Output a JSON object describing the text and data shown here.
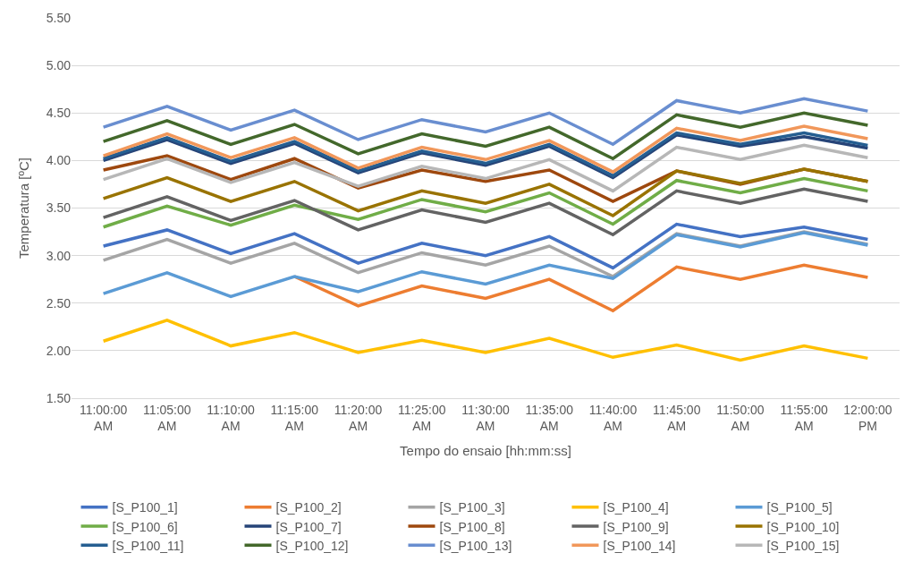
{
  "chart_data": {
    "type": "line",
    "xlabel": "Tempo do ensaio [hh:mm:ss]",
    "ylabel": "Temperatura [ºC]",
    "categories": [
      "11:00:00 AM",
      "11:05:00 AM",
      "11:10:00 AM",
      "11:15:00 AM",
      "11:20:00 AM",
      "11:25:00 AM",
      "11:30:00 AM",
      "11:35:00 AM",
      "11:40:00 AM",
      "11:45:00 AM",
      "11:50:00 AM",
      "11:55:00 AM",
      "12:00:00 PM"
    ],
    "ylim": [
      1.5,
      5.5
    ],
    "yticks": [
      {
        "value": 1.5,
        "label": "1.50"
      },
      {
        "value": 2.0,
        "label": "2.00"
      },
      {
        "value": 2.5,
        "label": "2.50"
      },
      {
        "value": 3.0,
        "label": "3.00"
      },
      {
        "value": 3.5,
        "label": "3.50"
      },
      {
        "value": 4.0,
        "label": "4.00"
      },
      {
        "value": 4.5,
        "label": "4.50"
      },
      {
        "value": 5.0,
        "label": "5.00"
      },
      {
        "value": 5.5,
        "label": "5.50"
      }
    ],
    "grid": "y",
    "legend": "bottom",
    "marker": "none",
    "line_style": "solid",
    "series": [
      {
        "name": "[S_P100_1]",
        "color": "#4472c4",
        "values": [
          3.1,
          3.27,
          3.02,
          3.23,
          2.92,
          3.13,
          3.0,
          3.2,
          2.87,
          3.33,
          3.2,
          3.3,
          3.17
        ]
      },
      {
        "name": "[S_P100_2]",
        "color": "#ed7d31",
        "values": [
          null,
          null,
          null,
          2.78,
          2.47,
          2.68,
          2.55,
          2.75,
          2.42,
          2.88,
          2.75,
          2.9,
          2.77
        ]
      },
      {
        "name": "[S_P100_3]",
        "color": "#a5a5a5",
        "values": [
          2.95,
          3.17,
          2.92,
          3.13,
          2.82,
          3.03,
          2.9,
          3.1,
          2.78,
          3.23,
          3.1,
          3.25,
          3.12
        ]
      },
      {
        "name": "[S_P100_4]",
        "color": "#ffc000",
        "values": [
          2.1,
          2.32,
          2.05,
          2.19,
          1.98,
          2.11,
          1.98,
          2.13,
          1.93,
          2.06,
          1.9,
          2.05,
          1.92
        ]
      },
      {
        "name": "[S_P100_5]",
        "color": "#5b9bd5",
        "values": [
          2.6,
          2.82,
          2.57,
          2.78,
          2.62,
          2.83,
          2.7,
          2.9,
          2.76,
          3.22,
          3.09,
          3.24,
          3.11
        ]
      },
      {
        "name": "[S_P100_6]",
        "color": "#70ad47",
        "values": [
          3.3,
          3.52,
          3.32,
          3.53,
          3.38,
          3.59,
          3.46,
          3.66,
          3.33,
          3.79,
          3.66,
          3.81,
          3.68
        ]
      },
      {
        "name": "[S_P100_7]",
        "color": "#264478",
        "values": [
          4.0,
          4.22,
          3.97,
          4.18,
          3.87,
          4.08,
          3.95,
          4.15,
          3.82,
          4.27,
          4.15,
          4.25,
          4.13
        ]
      },
      {
        "name": "[S_P100_8]",
        "color": "#9e480e",
        "values": [
          3.9,
          4.05,
          3.8,
          4.02,
          3.71,
          3.9,
          3.78,
          3.9,
          3.57,
          3.89,
          3.75,
          3.91,
          3.78
        ]
      },
      {
        "name": "[S_P100_9]",
        "color": "#636363",
        "values": [
          3.4,
          3.62,
          3.37,
          3.58,
          3.27,
          3.48,
          3.35,
          3.55,
          3.22,
          3.68,
          3.55,
          3.7,
          3.57
        ]
      },
      {
        "name": "[S_P100_10]",
        "color": "#997300",
        "values": [
          3.6,
          3.82,
          3.57,
          3.78,
          3.47,
          3.68,
          3.55,
          3.75,
          3.42,
          3.89,
          3.76,
          3.91,
          3.78
        ]
      },
      {
        "name": "[S_P100_11]",
        "color": "#255e91",
        "values": [
          4.02,
          4.24,
          3.99,
          4.2,
          3.89,
          4.1,
          3.97,
          4.17,
          3.84,
          4.29,
          4.17,
          4.29,
          4.16
        ]
      },
      {
        "name": "[S_P100_12]",
        "color": "#43682b",
        "values": [
          4.2,
          4.42,
          4.17,
          4.38,
          4.07,
          4.28,
          4.15,
          4.35,
          4.02,
          4.48,
          4.35,
          4.5,
          4.37
        ]
      },
      {
        "name": "[S_P100_13]",
        "color": "#698ed0",
        "values": [
          4.35,
          4.57,
          4.32,
          4.53,
          4.22,
          4.43,
          4.3,
          4.5,
          4.17,
          4.63,
          4.5,
          4.65,
          4.52
        ]
      },
      {
        "name": "[S_P100_14]",
        "color": "#f1975a",
        "values": [
          4.05,
          4.28,
          4.03,
          4.24,
          3.92,
          4.14,
          4.01,
          4.21,
          3.88,
          4.34,
          4.21,
          4.36,
          4.23
        ]
      },
      {
        "name": "[S_P100_15]",
        "color": "#b7b7b7",
        "values": [
          3.8,
          4.02,
          3.77,
          3.98,
          3.73,
          3.94,
          3.81,
          4.01,
          3.68,
          4.14,
          4.01,
          4.16,
          4.03
        ]
      }
    ]
  }
}
